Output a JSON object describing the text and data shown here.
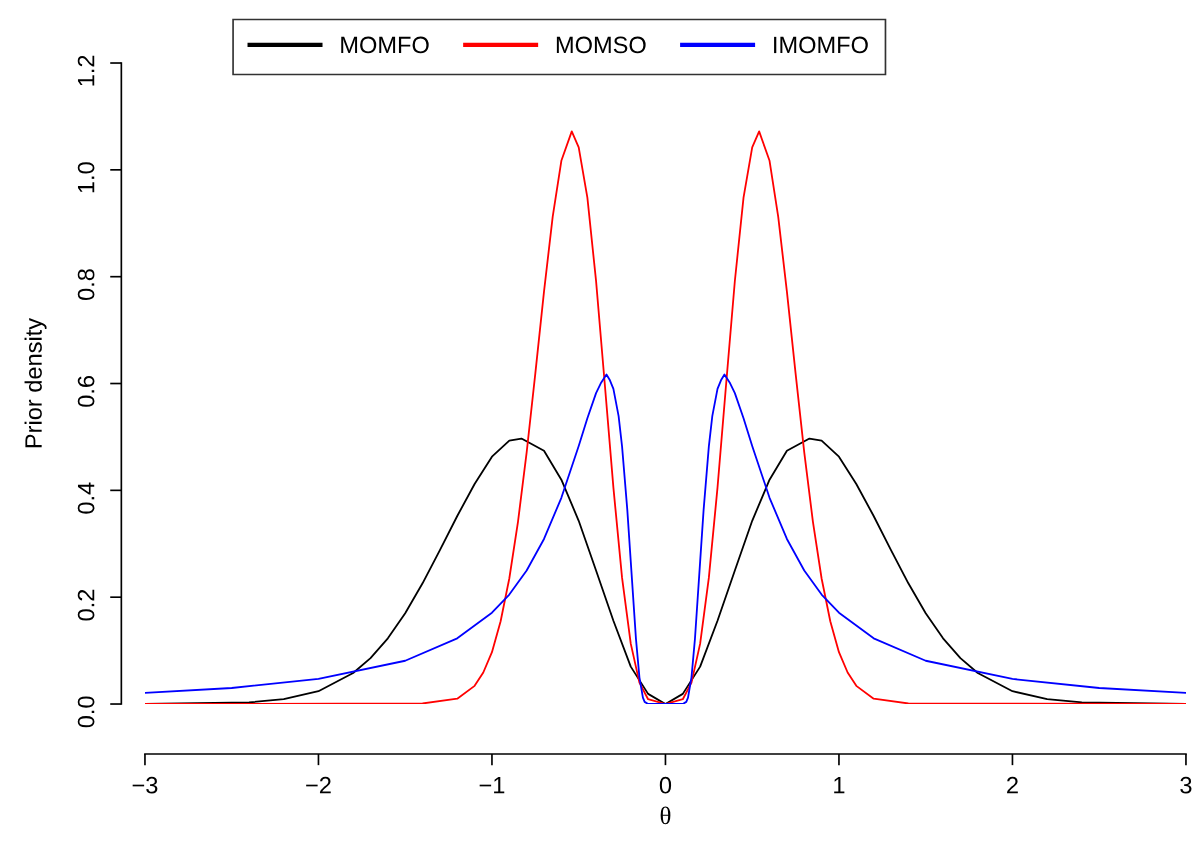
{
  "chart_data": {
    "type": "line",
    "xlabel": "θ",
    "ylabel": "Prior density",
    "xlim": [
      -3,
      3
    ],
    "ylim": [
      0,
      1.2
    ],
    "xticks": [
      {
        "value": -3,
        "label": "−3"
      },
      {
        "value": -2,
        "label": "−2"
      },
      {
        "value": -1,
        "label": "−1"
      },
      0,
      1,
      2,
      3
    ],
    "yticks": [
      {
        "value": 0,
        "label": "0.0"
      },
      {
        "value": 0.2,
        "label": "0.2"
      },
      {
        "value": 0.4,
        "label": "0.4"
      },
      {
        "value": 0.6,
        "label": "0.6"
      },
      {
        "value": 0.8,
        "label": "0.8"
      },
      {
        "value": 1.0,
        "label": "1.0"
      },
      {
        "value": 1.2,
        "label": "1.2"
      }
    ],
    "grid": false,
    "legend": "top",
    "marker": "none",
    "line_style": "solid",
    "series": [
      {
        "name": "MOMFO",
        "color": "#000000",
        "x": [
          -3,
          -2.4,
          -2.2,
          -2,
          -1.8,
          -1.7,
          -1.6,
          -1.5,
          -1.4,
          -1.3,
          -1.2,
          -1.1,
          -1,
          -0.9,
          -0.83,
          -0.7,
          -0.6,
          -0.5,
          -0.4,
          -0.3,
          -0.2,
          -0.1,
          0,
          0.1,
          0.2,
          0.3,
          0.4,
          0.5,
          0.6,
          0.7,
          0.83,
          0.9,
          1,
          1.1,
          1.2,
          1.3,
          1.4,
          1.5,
          1.6,
          1.7,
          1.8,
          2,
          2.2,
          2.4,
          3
        ],
        "values": [
          0,
          0.003,
          0.009,
          0.024,
          0.058,
          0.086,
          0.123,
          0.17,
          0.226,
          0.288,
          0.352,
          0.412,
          0.463,
          0.493,
          0.497,
          0.474,
          0.42,
          0.343,
          0.25,
          0.156,
          0.07,
          0.019,
          0,
          0.019,
          0.07,
          0.156,
          0.25,
          0.343,
          0.42,
          0.474,
          0.497,
          0.493,
          0.463,
          0.412,
          0.352,
          0.288,
          0.226,
          0.17,
          0.123,
          0.086,
          0.058,
          0.024,
          0.009,
          0.003,
          0
        ]
      },
      {
        "name": "MOMSO",
        "color": "#ff0000",
        "x": [
          -3,
          -1.4,
          -1.2,
          -1.1,
          -1.05,
          -1,
          -0.95,
          -0.9,
          -0.85,
          -0.8,
          -0.75,
          -0.7,
          -0.65,
          -0.6,
          -0.54,
          -0.5,
          -0.45,
          -0.4,
          -0.35,
          -0.3,
          -0.25,
          -0.2,
          -0.15,
          -0.1,
          0,
          0.1,
          0.15,
          0.2,
          0.25,
          0.3,
          0.35,
          0.4,
          0.45,
          0.5,
          0.54,
          0.6,
          0.65,
          0.7,
          0.75,
          0.8,
          0.85,
          0.9,
          0.95,
          1,
          1.05,
          1.1,
          1.2,
          1.4,
          3
        ],
        "values": [
          0,
          0.001,
          0.01,
          0.034,
          0.059,
          0.097,
          0.155,
          0.235,
          0.341,
          0.471,
          0.619,
          0.772,
          0.912,
          1.017,
          1.072,
          1.042,
          0.948,
          0.792,
          0.6,
          0.405,
          0.236,
          0.113,
          0.04,
          0.009,
          0,
          0.009,
          0.04,
          0.113,
          0.236,
          0.405,
          0.6,
          0.792,
          0.948,
          1.042,
          1.072,
          1.017,
          0.912,
          0.772,
          0.619,
          0.471,
          0.341,
          0.235,
          0.155,
          0.097,
          0.059,
          0.034,
          0.01,
          0.001,
          0
        ]
      },
      {
        "name": "IMOMFO",
        "color": "#0000ff",
        "x": [
          -3,
          -2.5,
          -2,
          -1.5,
          -1.2,
          -1,
          -0.9,
          -0.8,
          -0.7,
          -0.6,
          -0.5,
          -0.45,
          -0.4,
          -0.37,
          -0.34,
          -0.32,
          -0.3,
          -0.27,
          -0.25,
          -0.22,
          -0.2,
          -0.17,
          -0.15,
          -0.13,
          -0.12,
          -0.1,
          0,
          0.1,
          0.12,
          0.13,
          0.15,
          0.17,
          0.2,
          0.22,
          0.25,
          0.27,
          0.3,
          0.32,
          0.34,
          0.37,
          0.4,
          0.45,
          0.5,
          0.6,
          0.7,
          0.8,
          0.9,
          1,
          1.2,
          1.5,
          2,
          2.5,
          3
        ],
        "values": [
          0.021,
          0.03,
          0.047,
          0.081,
          0.123,
          0.171,
          0.205,
          0.25,
          0.309,
          0.386,
          0.483,
          0.535,
          0.582,
          0.602,
          0.617,
          0.606,
          0.59,
          0.539,
          0.482,
          0.364,
          0.267,
          0.122,
          0.05,
          0.012,
          0.004,
          0,
          0,
          0,
          0.004,
          0.012,
          0.05,
          0.122,
          0.267,
          0.364,
          0.482,
          0.539,
          0.59,
          0.606,
          0.617,
          0.602,
          0.582,
          0.535,
          0.483,
          0.386,
          0.309,
          0.25,
          0.205,
          0.171,
          0.123,
          0.081,
          0.047,
          0.03,
          0.021
        ]
      }
    ]
  }
}
